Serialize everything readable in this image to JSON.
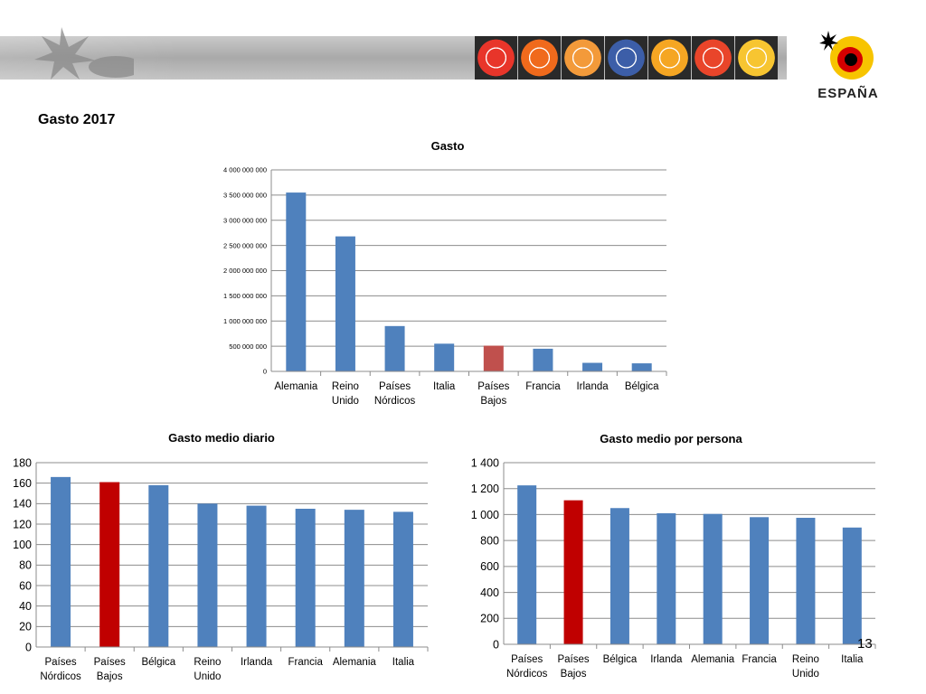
{
  "slide": {
    "title": "Gasto 2017",
    "page_number": "13"
  },
  "logo": {
    "text": "ESPAÑA"
  },
  "colors": {
    "bar": "#4f81bd",
    "highlight_top": "#c0504d",
    "highlight_bottom": "#c00000",
    "grid": "#8c8c8c",
    "banner_tiles": [
      "#e8352a",
      "#f06a1c",
      "#f39a3a",
      "#3c5ea8",
      "#f5a623",
      "#e9452a",
      "#f7c531"
    ]
  },
  "chart_data": [
    {
      "type": "bar",
      "title": "Gasto",
      "categories": [
        "Alemania",
        "Reino Unido",
        "Países Nórdicos",
        "Italia",
        "Países Bajos",
        "Francia",
        "Irlanda",
        "Bélgica"
      ],
      "values": [
        3550000000,
        2680000000,
        900000000,
        550000000,
        510000000,
        450000000,
        170000000,
        160000000
      ],
      "highlight": "Países Bajos",
      "ylim": [
        0,
        4000000000
      ],
      "yticks": [
        0,
        500000000,
        1000000000,
        1500000000,
        2000000000,
        2500000000,
        3000000000,
        3500000000,
        4000000000
      ],
      "ytick_labels": [
        "0",
        "500 000 000",
        "1 000 000 000",
        "1 500 000 000",
        "2 000 000 000",
        "2 500 000 000",
        "3 000 000 000",
        "3 500 000 000",
        "4 000 000 000"
      ],
      "grid": true,
      "legend": "none"
    },
    {
      "type": "bar",
      "title": "Gasto medio diario",
      "categories": [
        "Países Nórdicos",
        "Países Bajos",
        "Bélgica",
        "Reino Unido",
        "Irlanda",
        "Francia",
        "Alemania",
        "Italia"
      ],
      "values": [
        166,
        161,
        158,
        140,
        138,
        135,
        134,
        132
      ],
      "highlight": "Países Bajos",
      "ylim": [
        0,
        180
      ],
      "yticks": [
        0,
        20,
        40,
        60,
        80,
        100,
        120,
        140,
        160,
        180
      ],
      "ytick_labels": [
        "0",
        "20",
        "40",
        "60",
        "80",
        "100",
        "120",
        "140",
        "160",
        "180"
      ],
      "grid": true,
      "legend": "none"
    },
    {
      "type": "bar",
      "title": "Gasto medio por persona",
      "categories": [
        "Países Nórdicos",
        "Países Bajos",
        "Bélgica",
        "Irlanda",
        "Alemania",
        "Francia",
        "Reino Unido",
        "Italia"
      ],
      "values": [
        1225,
        1110,
        1050,
        1010,
        1005,
        980,
        975,
        900
      ],
      "highlight": "Países Bajos",
      "ylim": [
        0,
        1400
      ],
      "yticks": [
        0,
        200,
        400,
        600,
        800,
        1000,
        1200,
        1400
      ],
      "ytick_labels": [
        "0",
        "200",
        "400",
        "600",
        "800",
        "1 000",
        "1 200",
        "1 400"
      ],
      "grid": true,
      "legend": "none"
    }
  ]
}
